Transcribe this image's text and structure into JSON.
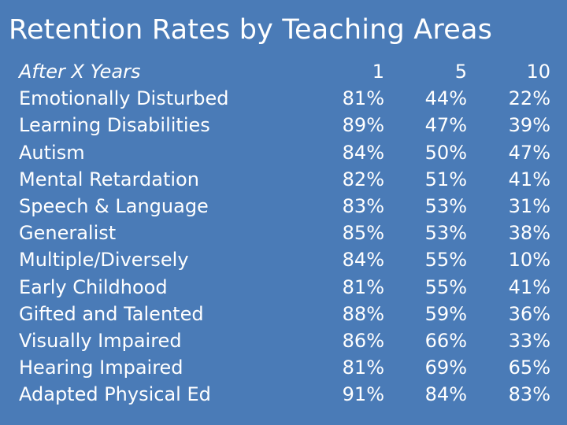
{
  "slide": {
    "title": "Retention Rates by Teaching Areas"
  },
  "table": {
    "header": {
      "label": "After X Years",
      "col1": "1",
      "col2": "5",
      "col3": "10"
    },
    "rows": [
      {
        "label": "Emotionally Disturbed",
        "col1": "81%",
        "col2": "44%",
        "col3": "22%"
      },
      {
        "label": "Learning Disabilities",
        "col1": "89%",
        "col2": "47%",
        "col3": "39%"
      },
      {
        "label": "Autism",
        "col1": "84%",
        "col2": "50%",
        "col3": "47%"
      },
      {
        "label": "Mental Retardation",
        "col1": "82%",
        "col2": "51%",
        "col3": "41%"
      },
      {
        "label": "Speech & Language",
        "col1": "83%",
        "col2": "53%",
        "col3": "31%"
      },
      {
        "label": "Generalist",
        "col1": "85%",
        "col2": "53%",
        "col3": "38%"
      },
      {
        "label": "Multiple/Diversely",
        "col1": "84%",
        "col2": "55%",
        "col3": "10%"
      },
      {
        "label": "Early Childhood",
        "col1": "81%",
        "col2": "55%",
        "col3": "41%"
      },
      {
        "label": "Gifted and Talented",
        "col1": "88%",
        "col2": "59%",
        "col3": "36%"
      },
      {
        "label": "Visually Impaired",
        "col1": "86%",
        "col2": "66%",
        "col3": "33%"
      },
      {
        "label": "Hearing Impaired",
        "col1": "81%",
        "col2": "69%",
        "col3": "65%"
      },
      {
        "label": "Adapted Physical Ed",
        "col1": "91%",
        "col2": "84%",
        "col3": "83%"
      }
    ]
  }
}
